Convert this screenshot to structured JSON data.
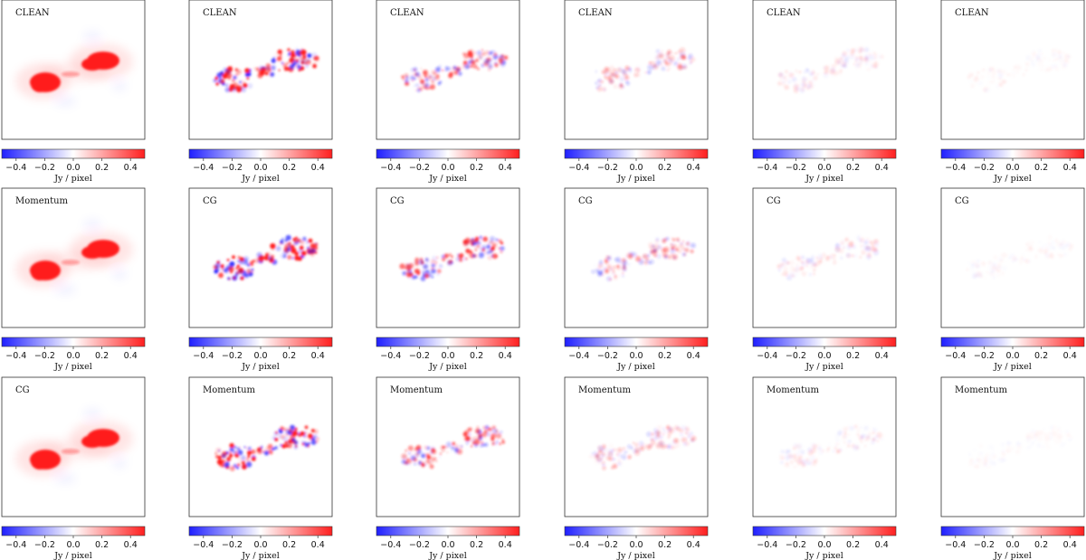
{
  "figure": {
    "description_text": null
  },
  "colors": {
    "negative": "#1f1fff",
    "zero": "#ffffff",
    "positive": "#ff1f1f",
    "axis": "#333333"
  },
  "chart_data": {
    "type": "heatmap",
    "layout": "grid 3 rows x 6 columns",
    "colormap": "bwr",
    "colorbar": {
      "label": "Jy / pixel",
      "vmin": -0.5,
      "vmax": 0.5,
      "ticks": [
        -0.4,
        -0.2,
        0.0,
        0.2,
        0.4
      ],
      "tick_labels": [
        "−0.4",
        "−0.2",
        "0.0",
        "0.2",
        "0.4"
      ]
    },
    "rows": [
      {
        "titles": [
          "CLEAN",
          "CLEAN",
          "CLEAN",
          "CLEAN",
          "CLEAN",
          "CLEAN"
        ],
        "panel_kind": [
          "image",
          "residual",
          "residual",
          "residual",
          "residual",
          "residual"
        ],
        "peak_abs_value": [
          0.5,
          0.5,
          0.3,
          0.16,
          0.07,
          0.03
        ]
      },
      {
        "titles": [
          "Momentum",
          "CG",
          "CG",
          "CG",
          "CG",
          "CG"
        ],
        "panel_kind": [
          "image",
          "residual",
          "residual",
          "residual",
          "residual",
          "residual"
        ],
        "peak_abs_value": [
          0.5,
          0.5,
          0.35,
          0.2,
          0.08,
          0.03
        ]
      },
      {
        "titles": [
          "CG",
          "Momentum",
          "Momentum",
          "Momentum",
          "Momentum",
          "Momentum"
        ],
        "panel_kind": [
          "image",
          "residual",
          "residual",
          "residual",
          "residual",
          "residual"
        ],
        "peak_abs_value": [
          0.5,
          0.5,
          0.3,
          0.14,
          0.06,
          0.02
        ]
      }
    ]
  }
}
